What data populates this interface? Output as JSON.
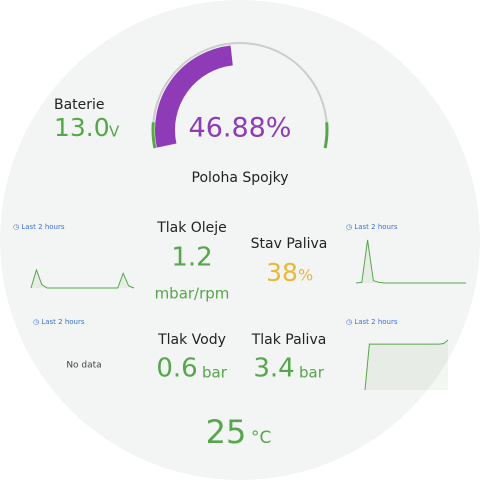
{
  "battery": {
    "title": "Baterie",
    "value": {
      "value": 13.0,
      "label": "13.0"
    },
    "unit": "V"
  },
  "gauge": {
    "title": "Poloha Spojky",
    "value": {
      "value": 46.88,
      "label": "46.88%"
    },
    "color": "#8f3bb8"
  },
  "oil_pressure": {
    "title": "Tlak Oleje",
    "value": 1.2,
    "unit": "mbar/rpm",
    "sparkline": {
      "time_range": "Last 2 hours",
      "values": [
        0.2,
        1.0,
        0.35,
        0.2,
        0.2,
        0.2,
        0.2,
        0.2,
        0.2,
        0.2,
        0.2,
        0.2,
        0.2,
        0.2,
        0.2,
        0.2,
        0.2,
        0.85,
        0.3,
        0.2
      ]
    }
  },
  "fuel_level": {
    "title": "Stav Paliva",
    "value": 38,
    "unit": "%",
    "sparkline": {
      "time_range": "Last 2 hours",
      "values": [
        0.1,
        0.15,
        3.8,
        0.3,
        0.15,
        0.1,
        0.1,
        0.1,
        0.1,
        0.1,
        0.1,
        0.1,
        0.1,
        0.1,
        0.1,
        0.1,
        0.1,
        0.1,
        0.1,
        0.1
      ]
    }
  },
  "water_pressure": {
    "title": "Tlak Vody",
    "value": 0.6,
    "unit": "bar",
    "sparkline": {
      "time_range": "Last 2 hours",
      "no_data": "No data"
    }
  },
  "fuel_pressure": {
    "title": "Tlak Paliva",
    "value": 3.4,
    "unit": "bar",
    "sparkline": {
      "time_range": "Last 2 hours",
      "values": [
        0,
        3.3,
        3.3,
        3.3,
        3.3,
        3.3,
        3.3,
        3.3,
        3.3,
        3.3,
        3.3,
        3.3,
        3.3,
        3.3,
        3.3,
        3.3,
        3.3,
        3.3,
        3.35,
        3.6
      ]
    }
  },
  "temperature": {
    "value": 25,
    "unit": "°C"
  }
}
